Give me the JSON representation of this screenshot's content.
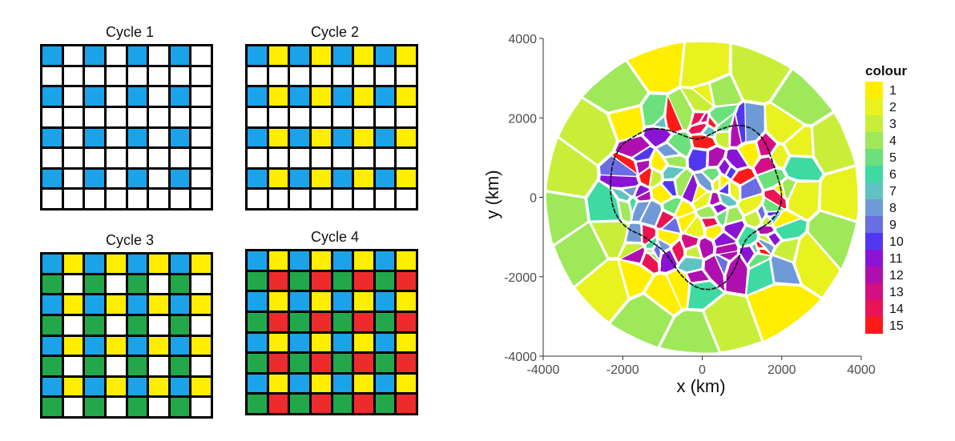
{
  "colors": {
    "blue": "#1aa3e8",
    "yellow": "#ffee00",
    "green": "#22a84a",
    "red": "#ee2b2b",
    "white": "#ffffff"
  },
  "cycles": [
    {
      "title": "Cycle 1",
      "rows": [
        "BWBWBWBW",
        "WWWWWWWW",
        "BWBWBWBW",
        "WWWWWWWW",
        "BWBWBWBW",
        "WWWWWWWW",
        "BWBWBWBW",
        "WWWWWWWW"
      ]
    },
    {
      "title": "Cycle 2",
      "rows": [
        "BYBYBYBY",
        "WWWWWWWW",
        "BYBYBYBY",
        "WWWWWWWW",
        "BYBYBYBY",
        "WWWWWWWW",
        "BYBYBYBY",
        "WWWWWWWW"
      ]
    },
    {
      "title": "Cycle 3",
      "rows": [
        "BYBYBYBY",
        "GWGWGWGW",
        "BYBYBYBY",
        "GWGWGWGW",
        "BYBYBYBY",
        "GWGWGWGW",
        "BYBYBYBY",
        "GWGWGWGW"
      ]
    },
    {
      "title": "Cycle 4",
      "rows": [
        "BYBYBYBY",
        "GRGRGRGR",
        "BYBYBYBY",
        "GRGRGRGR",
        "BYBYBYBY",
        "GRGRGRGR",
        "BYBYBYBY",
        "GRGRGRGR"
      ]
    }
  ],
  "map": {
    "xlabel": "x (km)",
    "ylabel": "y (km)",
    "xlim": [
      -4000,
      4000
    ],
    "ylim": [
      -4000,
      4000
    ],
    "xticks": [
      "-4000",
      "-2000",
      "0",
      "2000",
      "4000"
    ],
    "yticks": [
      "-4000",
      "-2000",
      "0",
      "2000",
      "4000"
    ],
    "legend": {
      "title": "colour",
      "entries": [
        {
          "label": "1",
          "color": "#ffee00"
        },
        {
          "label": "2",
          "color": "#e9f21f"
        },
        {
          "label": "3",
          "color": "#c9ee3a"
        },
        {
          "label": "4",
          "color": "#9ee85a"
        },
        {
          "label": "5",
          "color": "#6be07c"
        },
        {
          "label": "6",
          "color": "#3fd9a3"
        },
        {
          "label": "7",
          "color": "#5fc3c2"
        },
        {
          "label": "8",
          "color": "#6f9ad6"
        },
        {
          "label": "9",
          "color": "#6a6ee2"
        },
        {
          "label": "10",
          "color": "#5138f0"
        },
        {
          "label": "11",
          "color": "#8a14d4"
        },
        {
          "label": "12",
          "color": "#b00fb0"
        },
        {
          "label": "13",
          "color": "#d40f82"
        },
        {
          "label": "14",
          "color": "#ea1455"
        },
        {
          "label": "15",
          "color": "#ff1a1a"
        }
      ]
    }
  }
}
